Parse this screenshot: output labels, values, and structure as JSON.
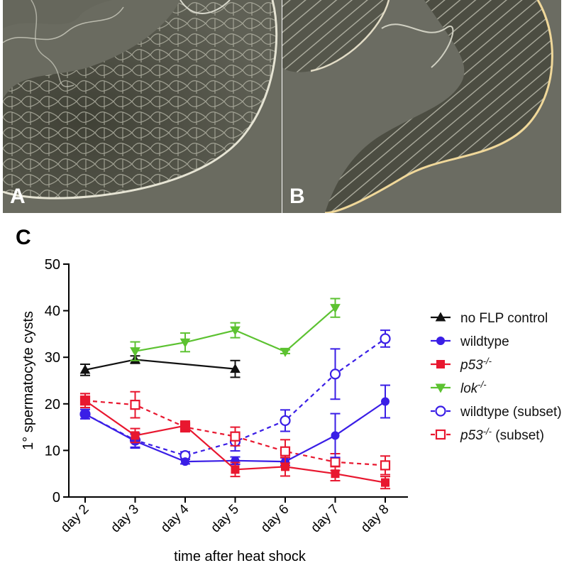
{
  "panels": {
    "a": {
      "label": "A"
    },
    "b": {
      "label": "B"
    },
    "c": {
      "label": "C"
    }
  },
  "colors": {
    "black": "#111111",
    "blue": "#3a1ee6",
    "red": "#e8172f",
    "green": "#5cc231",
    "micro_bg": "#5e5f54",
    "micro_tissue": "#4b4c40",
    "micro_line": "#d8d8cc"
  },
  "chart_data": {
    "type": "line",
    "title": "",
    "xlabel": "time after heat shock",
    "ylabel": "1° spermatocyte cysts",
    "categories": [
      "day 2",
      "day 3",
      "day 4",
      "day 5",
      "day 6",
      "day 7",
      "day 8"
    ],
    "ylim": [
      0,
      50
    ],
    "yticks": [
      0,
      10,
      20,
      30,
      40,
      50
    ],
    "grid": false,
    "legend_position": "right",
    "series": [
      {
        "name": "no FLP control",
        "name_suffix": "",
        "color": "#111111",
        "marker": "triangle-up",
        "filled": true,
        "dashed": false,
        "values": [
          27.3,
          29.5,
          null,
          27.5,
          null,
          null,
          null
        ],
        "errors": [
          1.2,
          0.8,
          null,
          1.8,
          null,
          null,
          null
        ]
      },
      {
        "name": "wildtype",
        "name_suffix": "",
        "color": "#3a1ee6",
        "marker": "circle",
        "filled": true,
        "dashed": false,
        "values": [
          17.8,
          12.0,
          7.6,
          7.8,
          7.6,
          13.2,
          20.5
        ],
        "errors": [
          1.0,
          1.5,
          0.5,
          0.8,
          0.8,
          4.7,
          3.5
        ]
      },
      {
        "name": "p53",
        "name_suffix": "-/-",
        "color": "#e8172f",
        "marker": "square",
        "filled": true,
        "dashed": false,
        "values": [
          20.7,
          13.2,
          15.3,
          5.9,
          6.5,
          5.0,
          3.1
        ],
        "errors": [
          1.5,
          1.5,
          1.0,
          1.5,
          2.0,
          1.5,
          1.3
        ]
      },
      {
        "name": "lok",
        "name_suffix": "-/-",
        "color": "#5cc231",
        "marker": "triangle-down",
        "filled": true,
        "dashed": false,
        "values": [
          null,
          31.3,
          33.2,
          35.8,
          31.2,
          40.6,
          null
        ],
        "errors": [
          null,
          2.0,
          2.0,
          1.6,
          0.4,
          2.0,
          null
        ]
      },
      {
        "name": "wildtype (subset)",
        "name_suffix": "",
        "color": "#3a1ee6",
        "marker": "circle",
        "filled": false,
        "dashed": true,
        "values": [
          17.8,
          12.2,
          8.9,
          11.9,
          16.4,
          26.4,
          34.0
        ],
        "errors": [
          1.0,
          1.5,
          0.8,
          2.0,
          2.3,
          5.4,
          1.8
        ]
      },
      {
        "name": "p53",
        "name_suffix": "-/-",
        "name_after": " (subset)",
        "color": "#e8172f",
        "marker": "square",
        "filled": false,
        "dashed": true,
        "values": [
          20.7,
          19.8,
          15.0,
          13.0,
          9.8,
          7.5,
          6.8
        ],
        "errors": [
          1.5,
          2.8,
          1.0,
          2.0,
          2.5,
          1.8,
          2.0
        ]
      }
    ]
  }
}
